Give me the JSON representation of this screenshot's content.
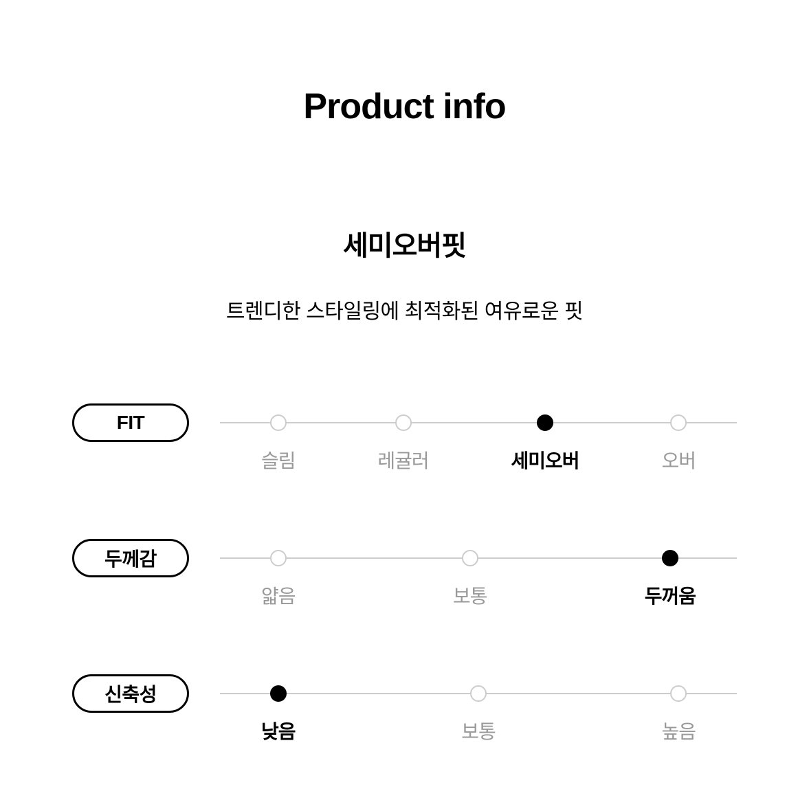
{
  "title": "Product info",
  "subtitle": {
    "main": "세미오버핏",
    "desc": "트렌디한 스타일링에 최적화된 여유로운 핏"
  },
  "attributes": [
    {
      "label": "FIT",
      "options": [
        "슬림",
        "레귤러",
        "세미오버",
        "오버"
      ],
      "selected": 2
    },
    {
      "label": "두께감",
      "options": [
        "얇음",
        "보통",
        "두꺼움"
      ],
      "selected": 2
    },
    {
      "label": "신축성",
      "options": [
        "낮음",
        "보통",
        "높음"
      ],
      "selected": 0
    }
  ],
  "colors": {
    "text_primary": "#000000",
    "text_muted": "#999999",
    "line": "#cccccc",
    "background": "#ffffff"
  }
}
